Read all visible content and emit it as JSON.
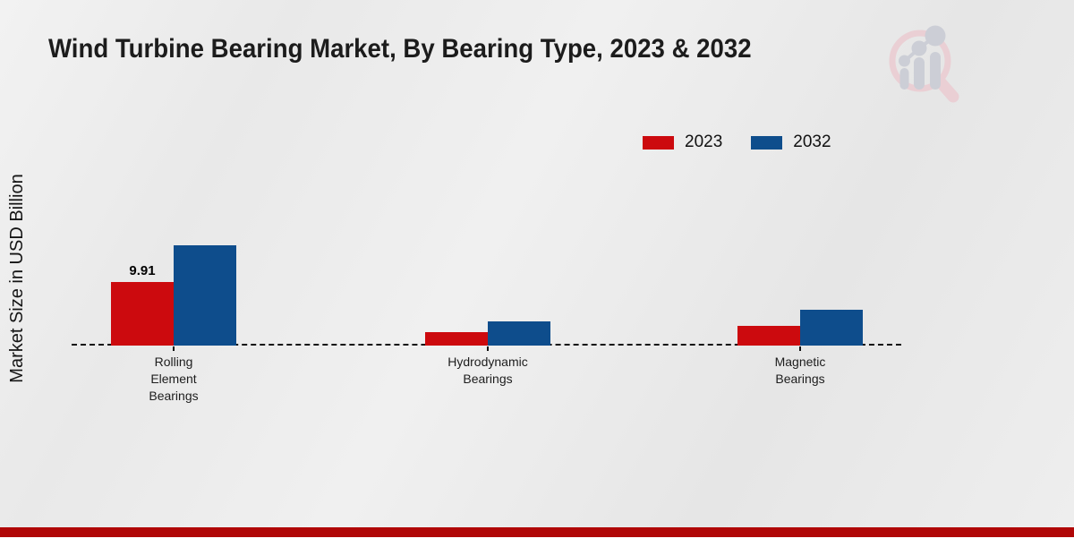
{
  "page": {
    "title": "Wind Turbine Bearing Market, By Bearing Type, 2023 & 2032",
    "footer_bar_color": "#b00707"
  },
  "logo": {
    "name": "magnifier-bar-chart-logo",
    "ring_color": "#eacfd4",
    "glyph_color": "#ccced6"
  },
  "chart_data": {
    "type": "bar",
    "title": "Wind Turbine Bearing Market, By Bearing Type, 2023 & 2032",
    "xlabel": "",
    "ylabel": "Market Size in USD Billion",
    "categories": [
      "Rolling\nElement\nBearings",
      "Hydrodynamic\nBearings",
      "Magnetic\nBearings"
    ],
    "series": [
      {
        "name": "2023",
        "color": "#cc0a0e",
        "values": [
          9.91,
          2.1,
          3.1
        ]
      },
      {
        "name": "2032",
        "color": "#0e4d8c",
        "values": [
          15.63,
          3.7,
          5.6
        ]
      }
    ],
    "annotations": [
      {
        "series": "2023",
        "category_index": 0,
        "text": "9.91"
      }
    ],
    "ylim": [
      0,
      20
    ],
    "grid": false,
    "baseline_style": "dashed",
    "legend_position": "upper-right"
  }
}
